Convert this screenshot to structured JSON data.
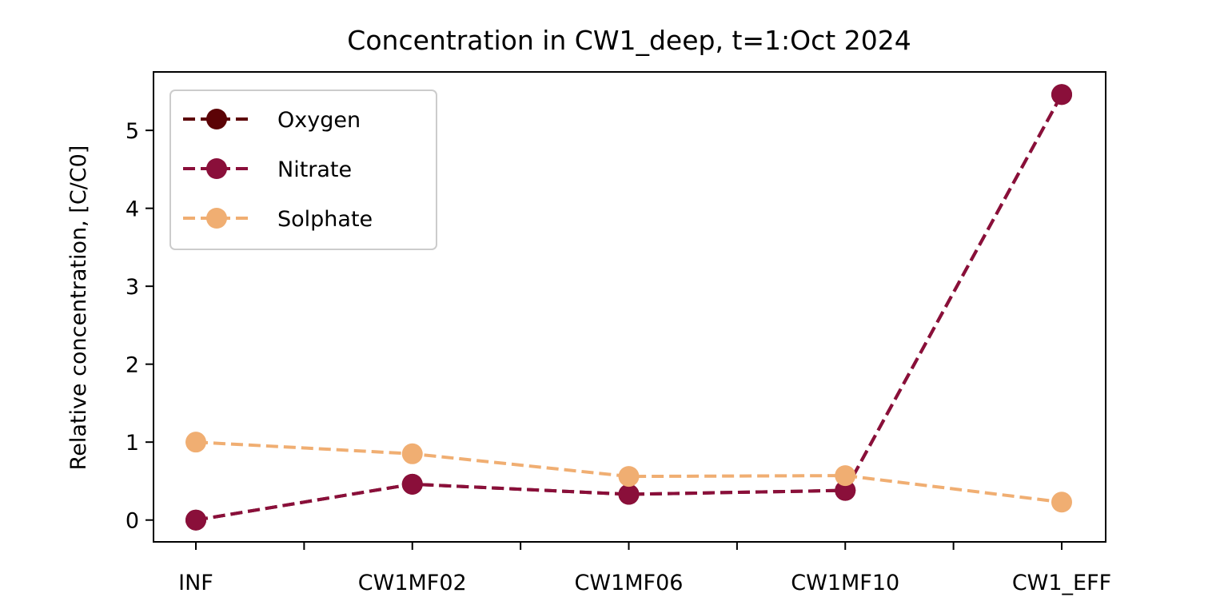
{
  "chart_data": {
    "type": "line",
    "title": "Concentration in CW1_deep, t=1:Oct 2024",
    "xlabel": "",
    "ylabel": "Relative concentration, [C/C0]",
    "categories": [
      "INF",
      "CW1MF02",
      "CW1MF06",
      "CW1MF10",
      "CW1_EFF"
    ],
    "ylim": [
      -0.28,
      5.75
    ],
    "yticks": [
      0,
      1,
      2,
      3,
      4,
      5
    ],
    "grid": false,
    "legend_position": "top-left",
    "series": [
      {
        "name": "Oxygen",
        "color": "#5c0306",
        "values": [
          0.0,
          0.46,
          0.33,
          0.38,
          5.46
        ]
      },
      {
        "name": "Nitrate",
        "color": "#8a0f3a",
        "values": [
          0.0,
          0.46,
          0.33,
          0.38,
          5.46
        ]
      },
      {
        "name": "Solphate",
        "color": "#f0ae72",
        "values": [
          1.0,
          0.85,
          0.56,
          0.57,
          0.23
        ]
      }
    ]
  }
}
